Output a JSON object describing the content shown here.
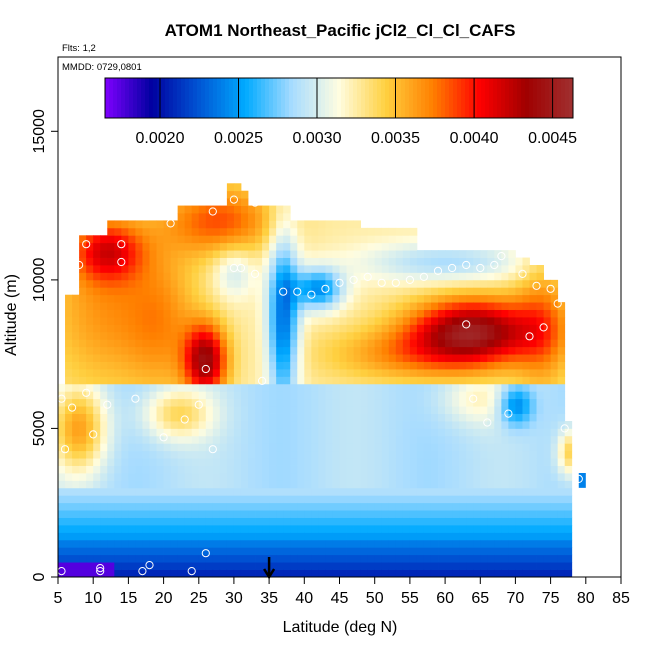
{
  "chart_data": {
    "type": "heatmap",
    "title": "ATOM1 Northeast_Pacific jCl2_Cl_Cl_CAFS",
    "subtitle_flights": "Flts: 1,2",
    "subtitle_dates": "MMDD: 0729,0801",
    "xlabel": "Latitude (deg N)",
    "ylabel": "Altitude (m)",
    "xlim": [
      5,
      85
    ],
    "ylim": [
      0,
      17500
    ],
    "x_ticks": [
      "5",
      "10",
      "15",
      "20",
      "25",
      "30",
      "35",
      "40",
      "45",
      "50",
      "55",
      "60",
      "65",
      "70",
      "75",
      "80",
      "85"
    ],
    "y_ticks": [
      "0",
      "5000",
      "10000",
      "15000"
    ],
    "colorbar": {
      "range": [
        0.00165,
        0.00463
      ],
      "tick_labels": [
        "0.0020",
        "0.0025",
        "0.0030",
        "0.0035",
        "0.0040",
        "0.0045"
      ],
      "tick_values": [
        0.002,
        0.0025,
        0.003,
        0.0035,
        0.004,
        0.0045
      ],
      "stops": [
        "#7f00ff",
        "#0000a0",
        "#0055d4",
        "#00aaff",
        "#a8dcff",
        "#fffde0",
        "#ffd040",
        "#ff8000",
        "#ff0000",
        "#a00000",
        "#a03030"
      ],
      "placement": "top, inside plot"
    },
    "marker": {
      "latitude": 35,
      "altitude": 0,
      "shape": "down-arrow"
    },
    "sample_points": [
      [
        5.5,
        200
      ],
      [
        5.5,
        6000
      ],
      [
        6,
        4300
      ],
      [
        7,
        5700
      ],
      [
        8,
        10500
      ],
      [
        9,
        11200
      ],
      [
        9,
        6200
      ],
      [
        10,
        4800
      ],
      [
        11,
        200
      ],
      [
        11,
        300
      ],
      [
        12,
        5800
      ],
      [
        14,
        11200
      ],
      [
        14,
        10600
      ],
      [
        16,
        6000
      ],
      [
        17,
        200
      ],
      [
        18,
        400
      ],
      [
        20,
        4700
      ],
      [
        21,
        11900
      ],
      [
        23,
        5300
      ],
      [
        24,
        200
      ],
      [
        25,
        5800
      ],
      [
        26,
        800
      ],
      [
        26,
        7000
      ],
      [
        27,
        4300
      ],
      [
        27,
        12300
      ],
      [
        30,
        12700
      ],
      [
        30,
        10400
      ],
      [
        31,
        10400
      ],
      [
        33,
        12600
      ],
      [
        33,
        10200
      ],
      [
        34,
        6600
      ],
      [
        37,
        9600
      ],
      [
        39,
        9600
      ],
      [
        41,
        9500
      ],
      [
        43,
        9700
      ],
      [
        45,
        9900
      ],
      [
        47,
        10000
      ],
      [
        49,
        10100
      ],
      [
        51,
        9900
      ],
      [
        53,
        9900
      ],
      [
        55,
        10000
      ],
      [
        57,
        10100
      ],
      [
        59,
        10300
      ],
      [
        61,
        10400
      ],
      [
        63,
        10500
      ],
      [
        63,
        8500
      ],
      [
        64,
        6000
      ],
      [
        65,
        10400
      ],
      [
        66,
        5200
      ],
      [
        67,
        10500
      ],
      [
        68,
        10800
      ],
      [
        69,
        5500
      ],
      [
        71,
        10200
      ],
      [
        72,
        8100
      ],
      [
        73,
        9800
      ],
      [
        74,
        8400
      ],
      [
        75,
        9700
      ],
      [
        76,
        9200
      ],
      [
        77,
        5000
      ],
      [
        79,
        3300
      ],
      [
        79,
        200
      ]
    ]
  }
}
